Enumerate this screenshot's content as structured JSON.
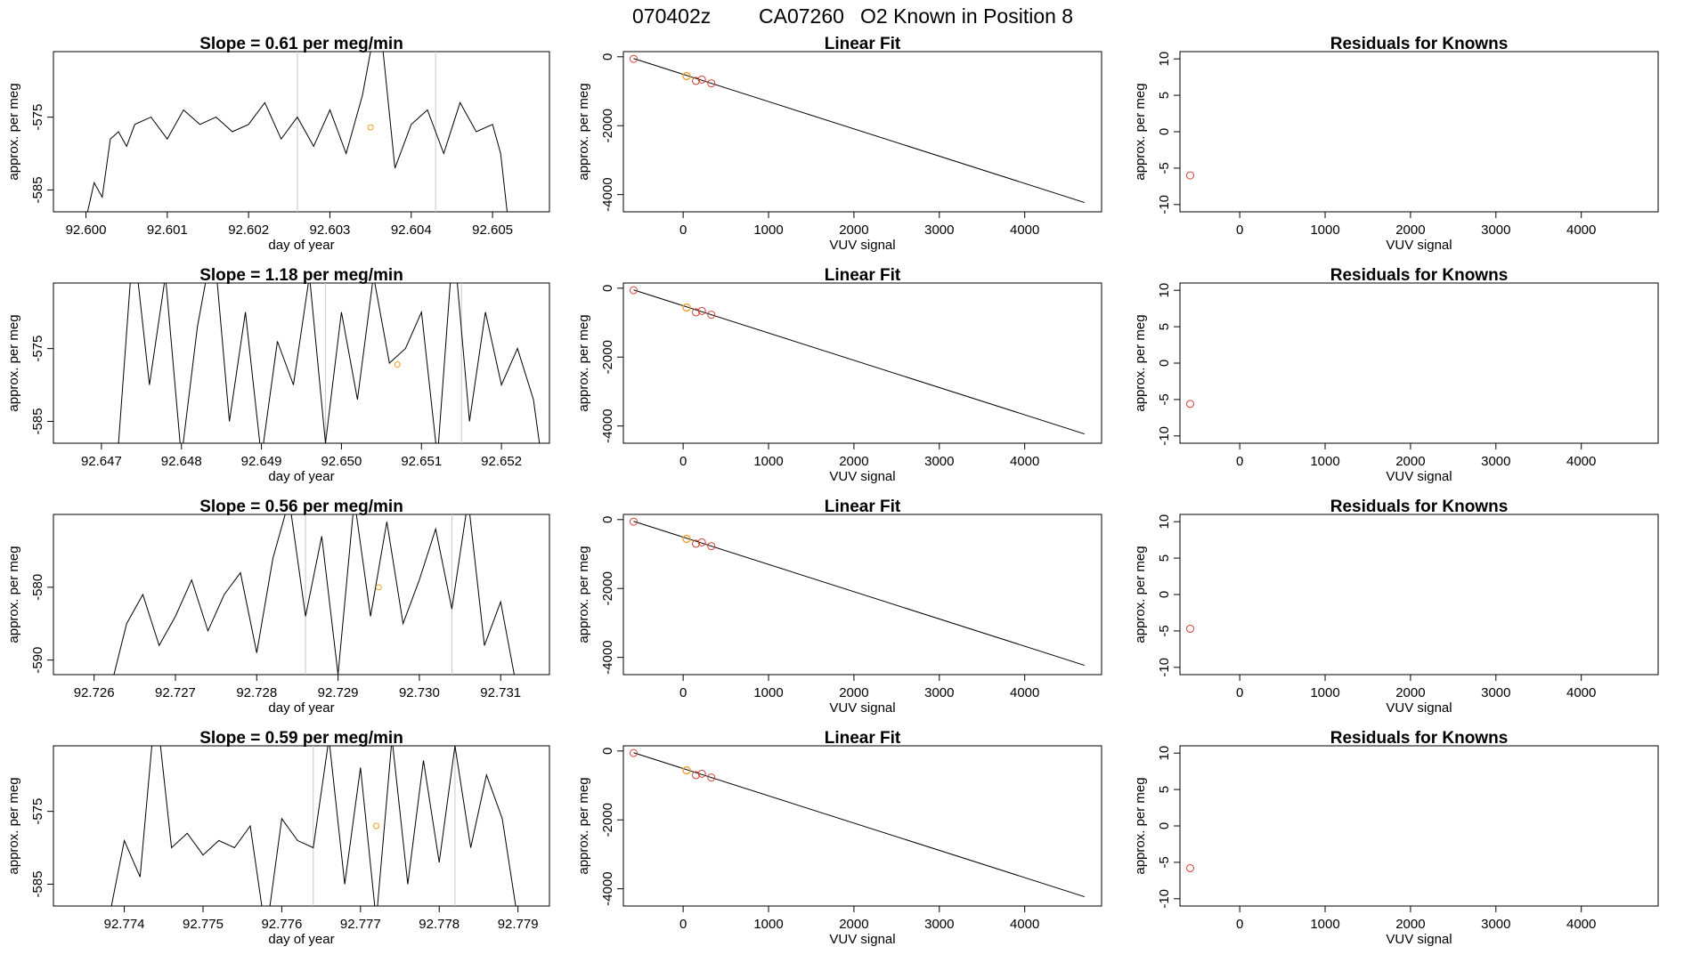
{
  "figure": {
    "title_parts": [
      "070402z",
      "CA07260",
      "O2 Known in Position  8"
    ]
  },
  "chart_data": [
    {
      "type": "line",
      "panel": "timeseries",
      "row": 0,
      "title": "Slope =  0.61  per meg/min",
      "xlabel": "day of year",
      "ylabel": "approx. per meg",
      "xlim": [
        92.5996,
        92.6057
      ],
      "ylim": [
        -588,
        -566
      ],
      "xticks": [
        92.6,
        92.601,
        92.602,
        92.603,
        92.604,
        92.605
      ],
      "xtick_labels": [
        "92.600",
        "92.601",
        "92.602",
        "92.603",
        "92.604",
        "92.605"
      ],
      "yticks": [
        -575,
        -585
      ],
      "ytick_labels": [
        "-575",
        "-585"
      ],
      "vlines": [
        92.6026,
        92.6043
      ],
      "highlight": {
        "x": 92.6035,
        "y": -576.4
      },
      "series": [
        {
          "name": "trace",
          "x": [
            92.6,
            92.6001,
            92.6002,
            92.6003,
            92.6004,
            92.6005,
            92.6006,
            92.6008,
            92.601,
            92.6012,
            92.6014,
            92.6016,
            92.6018,
            92.602,
            92.6022,
            92.6024,
            92.6026,
            92.6028,
            92.603,
            92.6032,
            92.6034,
            92.6036,
            92.6038,
            92.604,
            92.6042,
            92.6044,
            92.6046,
            92.6048,
            92.605,
            92.6051,
            92.6052
          ],
          "y": [
            -589,
            -584,
            -586,
            -578,
            -577,
            -579,
            -576,
            -575,
            -578,
            -574,
            -576,
            -575,
            -577,
            -576,
            -573,
            -578,
            -575,
            -579,
            -574,
            -580,
            -572,
            -560,
            -582,
            -576,
            -574,
            -580,
            -573,
            -577,
            -576,
            -580,
            -590
          ]
        }
      ]
    },
    {
      "type": "scatter_fit",
      "panel": "linear_fit",
      "row": 0,
      "title": "Linear Fit",
      "xlabel": "VUV signal",
      "ylabel": "approx. per meg",
      "xlim": [
        -700,
        4900
      ],
      "ylim": [
        -4500,
        150
      ],
      "xticks": [
        0,
        1000,
        2000,
        3000,
        4000
      ],
      "xtick_labels": [
        "0",
        "1000",
        "2000",
        "3000",
        "4000"
      ],
      "yticks": [
        0,
        -2000,
        -4000
      ],
      "ytick_labels": [
        "0",
        "-2000",
        "-4000"
      ],
      "fit_line": {
        "x": [
          -580,
          4700
        ],
        "y": [
          -50,
          -4230
        ]
      },
      "points": {
        "x": [
          -580,
          40,
          150,
          220,
          330
        ],
        "y": [
          -60,
          -560,
          -700,
          -660,
          -770
        ]
      },
      "highlight": {
        "x": 40,
        "y": -560
      }
    },
    {
      "type": "scatter",
      "panel": "residuals",
      "row": 0,
      "title": "Residuals for Knowns",
      "xlabel": "VUV signal",
      "ylabel": "approx. per meg",
      "xlim": [
        -700,
        4900
      ],
      "ylim": [
        -11,
        11
      ],
      "xticks": [
        0,
        1000,
        2000,
        3000,
        4000
      ],
      "xtick_labels": [
        "0",
        "1000",
        "2000",
        "3000",
        "4000"
      ],
      "yticks": [
        10,
        5,
        0,
        -5,
        -10
      ],
      "ytick_labels": [
        "10",
        "5",
        "0",
        "-5",
        "-10"
      ],
      "points": {
        "x": [
          -580
        ],
        "y": [
          -6.0
        ]
      }
    },
    {
      "type": "line",
      "panel": "timeseries",
      "row": 1,
      "title": "Slope =  1.18  per meg/min",
      "xlabel": "day of year",
      "ylabel": "approx. per meg",
      "xlim": [
        92.6464,
        92.6526
      ],
      "ylim": [
        -588,
        -566
      ],
      "xticks": [
        92.647,
        92.648,
        92.649,
        92.65,
        92.651,
        92.652
      ],
      "xtick_labels": [
        "92.647",
        "92.648",
        "92.649",
        "92.650",
        "92.651",
        "92.652"
      ],
      "yticks": [
        -575,
        -585
      ],
      "ytick_labels": [
        "-575",
        "-585"
      ],
      "vlines": [
        92.6498,
        92.6515
      ],
      "highlight": {
        "x": 92.6507,
        "y": -577.2
      },
      "series": [
        {
          "name": "trace",
          "x": [
            92.6472,
            92.6474,
            92.6476,
            92.6478,
            92.648,
            92.6482,
            92.6484,
            92.6486,
            92.6488,
            92.649,
            92.6492,
            92.6494,
            92.6496,
            92.6498,
            92.65,
            92.6502,
            92.6504,
            92.6506,
            92.6508,
            92.651,
            92.6512,
            92.6514,
            92.6516,
            92.6518,
            92.652,
            92.6522,
            92.6524,
            92.6525
          ],
          "y": [
            -590,
            -560,
            -580,
            -565,
            -590,
            -572,
            -560,
            -585,
            -570,
            -590,
            -574,
            -580,
            -565,
            -588,
            -570,
            -582,
            -565,
            -577,
            -575,
            -570,
            -590,
            -560,
            -585,
            -570,
            -580,
            -575,
            -582,
            -590
          ]
        }
      ]
    },
    {
      "type": "scatter_fit",
      "panel": "linear_fit",
      "row": 1,
      "title": "Linear Fit",
      "xlabel": "VUV signal",
      "ylabel": "approx. per meg",
      "xlim": [
        -700,
        4900
      ],
      "ylim": [
        -4500,
        150
      ],
      "xticks": [
        0,
        1000,
        2000,
        3000,
        4000
      ],
      "xtick_labels": [
        "0",
        "1000",
        "2000",
        "3000",
        "4000"
      ],
      "yticks": [
        0,
        -2000,
        -4000
      ],
      "ytick_labels": [
        "0",
        "-2000",
        "-4000"
      ],
      "fit_line": {
        "x": [
          -580,
          4700
        ],
        "y": [
          -50,
          -4230
        ]
      },
      "points": {
        "x": [
          -580,
          40,
          150,
          220,
          330
        ],
        "y": [
          -60,
          -560,
          -700,
          -660,
          -770
        ]
      },
      "highlight": {
        "x": 40,
        "y": -560
      }
    },
    {
      "type": "scatter",
      "panel": "residuals",
      "row": 1,
      "title": "Residuals for Knowns",
      "xlabel": "VUV signal",
      "ylabel": "approx. per meg",
      "xlim": [
        -700,
        4900
      ],
      "ylim": [
        -11,
        11
      ],
      "xticks": [
        0,
        1000,
        2000,
        3000,
        4000
      ],
      "xtick_labels": [
        "0",
        "1000",
        "2000",
        "3000",
        "4000"
      ],
      "yticks": [
        10,
        5,
        0,
        -5,
        -10
      ],
      "ytick_labels": [
        "10",
        "5",
        "0",
        "-5",
        "-10"
      ],
      "points": {
        "x": [
          -580
        ],
        "y": [
          -5.6
        ]
      }
    },
    {
      "type": "line",
      "panel": "timeseries",
      "row": 2,
      "title": "Slope =  0.56  per meg/min",
      "xlabel": "day of year",
      "ylabel": "approx. per meg",
      "xlim": [
        92.7255,
        92.7316
      ],
      "ylim": [
        -592,
        -570
      ],
      "xticks": [
        92.726,
        92.727,
        92.728,
        92.729,
        92.73,
        92.731
      ],
      "xtick_labels": [
        "92.726",
        "92.727",
        "92.728",
        "92.729",
        "92.730",
        "92.731"
      ],
      "yticks": [
        -580,
        -590
      ],
      "ytick_labels": [
        "-580",
        "-590"
      ],
      "vlines": [
        92.7286,
        92.7304
      ],
      "highlight": {
        "x": 92.7295,
        "y": -580.0
      },
      "series": [
        {
          "name": "trace",
          "x": [
            92.7262,
            92.7264,
            92.7266,
            92.7268,
            92.727,
            92.7272,
            92.7274,
            92.7276,
            92.7278,
            92.728,
            92.7282,
            92.7284,
            92.7286,
            92.7288,
            92.729,
            92.7292,
            92.7294,
            92.7296,
            92.7298,
            92.73,
            92.7302,
            92.7304,
            92.7306,
            92.7308,
            92.731,
            92.7312
          ],
          "y": [
            -594,
            -585,
            -581,
            -588,
            -584,
            -579,
            -586,
            -581,
            -578,
            -589,
            -576,
            -568,
            -584,
            -573,
            -592,
            -568,
            -584,
            -571,
            -585,
            -579,
            -572,
            -583,
            -568,
            -588,
            -582,
            -594
          ]
        }
      ]
    },
    {
      "type": "scatter_fit",
      "panel": "linear_fit",
      "row": 2,
      "title": "Linear Fit",
      "xlabel": "VUV signal",
      "ylabel": "approx. per meg",
      "xlim": [
        -700,
        4900
      ],
      "ylim": [
        -4500,
        150
      ],
      "xticks": [
        0,
        1000,
        2000,
        3000,
        4000
      ],
      "xtick_labels": [
        "0",
        "1000",
        "2000",
        "3000",
        "4000"
      ],
      "yticks": [
        0,
        -2000,
        -4000
      ],
      "ytick_labels": [
        "0",
        "-2000",
        "-4000"
      ],
      "fit_line": {
        "x": [
          -580,
          4700
        ],
        "y": [
          -50,
          -4230
        ]
      },
      "points": {
        "x": [
          -580,
          40,
          150,
          220,
          330
        ],
        "y": [
          -60,
          -560,
          -700,
          -660,
          -770
        ]
      },
      "highlight": {
        "x": 40,
        "y": -560
      }
    },
    {
      "type": "scatter",
      "panel": "residuals",
      "row": 2,
      "title": "Residuals for Knowns",
      "xlabel": "VUV signal",
      "ylabel": "approx. per meg",
      "xlim": [
        -700,
        4900
      ],
      "ylim": [
        -11,
        11
      ],
      "xticks": [
        0,
        1000,
        2000,
        3000,
        4000
      ],
      "xtick_labels": [
        "0",
        "1000",
        "2000",
        "3000",
        "4000"
      ],
      "yticks": [
        10,
        5,
        0,
        -5,
        -10
      ],
      "ytick_labels": [
        "10",
        "5",
        "0",
        "-5",
        "-10"
      ],
      "points": {
        "x": [
          -580
        ],
        "y": [
          -4.7
        ]
      }
    },
    {
      "type": "line",
      "panel": "timeseries",
      "row": 3,
      "title": "Slope =  0.59  per meg/min",
      "xlabel": "day of year",
      "ylabel": "approx. per meg",
      "xlim": [
        92.7731,
        92.7794
      ],
      "ylim": [
        -588,
        -566
      ],
      "xticks": [
        92.774,
        92.775,
        92.776,
        92.777,
        92.778,
        92.779
      ],
      "xtick_labels": [
        "92.774",
        "92.775",
        "92.776",
        "92.777",
        "92.778",
        "92.779"
      ],
      "yticks": [
        -575,
        -585
      ],
      "ytick_labels": [
        "-575",
        "-585"
      ],
      "vlines": [
        92.7764,
        92.7782
      ],
      "highlight": {
        "x": 92.7772,
        "y": -577.0
      },
      "series": [
        {
          "name": "trace",
          "x": [
            92.7738,
            92.774,
            92.7742,
            92.7744,
            92.7746,
            92.7748,
            92.775,
            92.7752,
            92.7754,
            92.7756,
            92.7758,
            92.776,
            92.7762,
            92.7764,
            92.7766,
            92.7768,
            92.777,
            92.7772,
            92.7774,
            92.7776,
            92.7778,
            92.778,
            92.7782,
            92.7784,
            92.7786,
            92.7788,
            92.779
          ],
          "y": [
            -590,
            -579,
            -584,
            -560,
            -580,
            -578,
            -581,
            -579,
            -580,
            -577,
            -592,
            -576,
            -579,
            -580,
            -565,
            -585,
            -569,
            -590,
            -565,
            -585,
            -568,
            -582,
            -566,
            -580,
            -570,
            -576,
            -590
          ]
        }
      ]
    },
    {
      "type": "scatter_fit",
      "panel": "linear_fit",
      "row": 3,
      "title": "Linear Fit",
      "xlabel": "VUV signal",
      "ylabel": "approx. per meg",
      "xlim": [
        -700,
        4900
      ],
      "ylim": [
        -4500,
        150
      ],
      "xticks": [
        0,
        1000,
        2000,
        3000,
        4000
      ],
      "xtick_labels": [
        "0",
        "1000",
        "2000",
        "3000",
        "4000"
      ],
      "yticks": [
        0,
        -2000,
        -4000
      ],
      "ytick_labels": [
        "0",
        "-2000",
        "-4000"
      ],
      "fit_line": {
        "x": [
          -580,
          4700
        ],
        "y": [
          -50,
          -4230
        ]
      },
      "points": {
        "x": [
          -580,
          40,
          150,
          220,
          330
        ],
        "y": [
          -60,
          -560,
          -700,
          -660,
          -770
        ]
      },
      "highlight": {
        "x": 40,
        "y": -560
      }
    },
    {
      "type": "scatter",
      "panel": "residuals",
      "row": 3,
      "title": "Residuals for Knowns",
      "xlabel": "VUV signal",
      "ylabel": "approx. per meg",
      "xlim": [
        -700,
        4900
      ],
      "ylim": [
        -11,
        11
      ],
      "xticks": [
        0,
        1000,
        2000,
        3000,
        4000
      ],
      "xtick_labels": [
        "0",
        "1000",
        "2000",
        "3000",
        "4000"
      ],
      "yticks": [
        10,
        5,
        0,
        -5,
        -10
      ],
      "ytick_labels": [
        "10",
        "5",
        "0",
        "-5",
        "-10"
      ],
      "points": {
        "x": [
          -580
        ],
        "y": [
          -5.8
        ]
      }
    }
  ]
}
